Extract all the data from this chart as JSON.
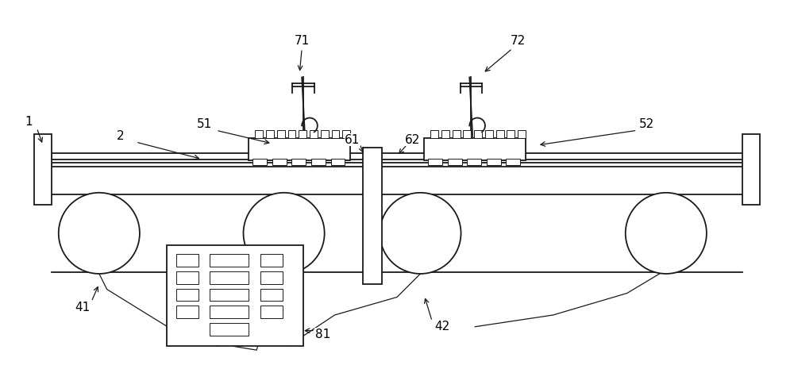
{
  "bg_color": "#ffffff",
  "line_color": "#1a1a1a",
  "label_color": "#000000",
  "fig_width": 10.0,
  "fig_height": 4.65,
  "lw_main": 1.3,
  "lw_thin": 0.9,
  "label_fs": 11
}
